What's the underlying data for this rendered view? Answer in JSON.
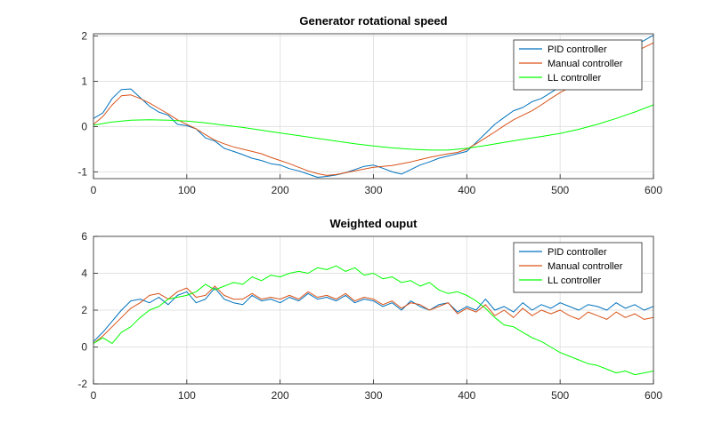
{
  "colors": {
    "pid": "#0072BD",
    "manual": "#D95319",
    "ll": "#00FF00",
    "grid": "#e3e3e3",
    "axis": "#262626"
  },
  "chart_data": [
    {
      "type": "line",
      "title": "Generator rotational speed",
      "xlabel": "",
      "ylabel": "",
      "xlim": [
        0,
        600
      ],
      "ylim": [
        -1.15,
        2.05
      ],
      "xticks": [
        0,
        100,
        200,
        300,
        400,
        500,
        600
      ],
      "yticks": [
        -1,
        0,
        1,
        2
      ],
      "grid": true,
      "legend_position": "top-right",
      "series": [
        {
          "name": "PID controller",
          "color_key": "pid",
          "x": [
            0,
            10,
            20,
            30,
            40,
            50,
            60,
            70,
            80,
            90,
            100,
            110,
            120,
            130,
            140,
            150,
            160,
            170,
            180,
            190,
            200,
            210,
            220,
            230,
            240,
            250,
            260,
            270,
            280,
            290,
            300,
            310,
            320,
            330,
            340,
            350,
            360,
            370,
            380,
            390,
            400,
            410,
            420,
            430,
            440,
            450,
            460,
            470,
            480,
            490,
            500,
            510,
            520,
            530,
            540,
            550,
            560,
            570,
            580,
            590,
            600
          ],
          "values": [
            0.18,
            0.3,
            0.62,
            0.82,
            0.83,
            0.64,
            0.45,
            0.32,
            0.25,
            0.05,
            0.02,
            -0.05,
            -0.25,
            -0.32,
            -0.48,
            -0.55,
            -0.62,
            -0.7,
            -0.75,
            -0.82,
            -0.85,
            -0.93,
            -0.98,
            -1.05,
            -1.12,
            -1.1,
            -1.07,
            -1.02,
            -0.95,
            -0.88,
            -0.85,
            -0.92,
            -1.0,
            -1.05,
            -0.95,
            -0.85,
            -0.78,
            -0.7,
            -0.65,
            -0.6,
            -0.55,
            -0.35,
            -0.15,
            0.05,
            0.2,
            0.35,
            0.42,
            0.55,
            0.62,
            0.75,
            0.88,
            1.0,
            1.15,
            1.22,
            1.35,
            1.48,
            1.58,
            1.7,
            1.8,
            1.9,
            2.02
          ]
        },
        {
          "name": "Manual controller",
          "color_key": "manual",
          "x": [
            0,
            10,
            20,
            30,
            40,
            50,
            60,
            70,
            80,
            90,
            100,
            110,
            120,
            130,
            140,
            150,
            160,
            170,
            180,
            190,
            200,
            210,
            220,
            230,
            240,
            250,
            260,
            270,
            280,
            290,
            300,
            310,
            320,
            330,
            340,
            350,
            360,
            370,
            380,
            390,
            400,
            410,
            420,
            430,
            440,
            450,
            460,
            470,
            480,
            490,
            500,
            510,
            520,
            530,
            540,
            550,
            560,
            570,
            580,
            590,
            600
          ],
          "values": [
            0.05,
            0.22,
            0.48,
            0.68,
            0.7,
            0.62,
            0.52,
            0.4,
            0.28,
            0.15,
            0.05,
            -0.05,
            -0.18,
            -0.3,
            -0.38,
            -0.45,
            -0.5,
            -0.55,
            -0.6,
            -0.68,
            -0.75,
            -0.82,
            -0.9,
            -0.98,
            -1.04,
            -1.08,
            -1.06,
            -1.02,
            -0.98,
            -0.94,
            -0.9,
            -0.88,
            -0.86,
            -0.82,
            -0.78,
            -0.73,
            -0.68,
            -0.64,
            -0.6,
            -0.57,
            -0.5,
            -0.38,
            -0.25,
            -0.12,
            0.02,
            0.15,
            0.25,
            0.35,
            0.48,
            0.62,
            0.75,
            0.86,
            0.95,
            1.08,
            1.2,
            1.32,
            1.45,
            1.55,
            1.65,
            1.75,
            1.85
          ]
        },
        {
          "name": "LL controller",
          "color_key": "ll",
          "x": [
            0,
            20,
            40,
            60,
            80,
            100,
            120,
            140,
            160,
            180,
            200,
            220,
            240,
            260,
            280,
            300,
            320,
            340,
            360,
            380,
            400,
            420,
            440,
            460,
            480,
            500,
            520,
            540,
            560,
            580,
            600
          ],
          "values": [
            0.03,
            0.1,
            0.14,
            0.15,
            0.14,
            0.12,
            0.08,
            0.03,
            -0.02,
            -0.08,
            -0.14,
            -0.2,
            -0.26,
            -0.32,
            -0.38,
            -0.43,
            -0.47,
            -0.5,
            -0.52,
            -0.52,
            -0.48,
            -0.42,
            -0.35,
            -0.28,
            -0.22,
            -0.15,
            -0.06,
            0.05,
            0.18,
            0.32,
            0.48
          ]
        }
      ]
    },
    {
      "type": "line",
      "title": "Weighted ouput",
      "xlabel": "",
      "ylabel": "",
      "xlim": [
        0,
        600
      ],
      "ylim": [
        -2,
        6
      ],
      "xticks": [
        0,
        100,
        200,
        300,
        400,
        500,
        600
      ],
      "yticks": [
        -2,
        0,
        2,
        4,
        6
      ],
      "grid": true,
      "legend_position": "top-right",
      "series": [
        {
          "name": "PID controller",
          "color_key": "pid",
          "x": [
            0,
            10,
            20,
            30,
            40,
            50,
            60,
            70,
            80,
            90,
            100,
            110,
            120,
            130,
            140,
            150,
            160,
            170,
            180,
            190,
            200,
            210,
            220,
            230,
            240,
            250,
            260,
            270,
            280,
            290,
            300,
            310,
            320,
            330,
            340,
            350,
            360,
            370,
            380,
            390,
            400,
            410,
            420,
            430,
            440,
            450,
            460,
            470,
            480,
            490,
            500,
            510,
            520,
            530,
            540,
            550,
            560,
            570,
            580,
            590,
            600
          ],
          "values": [
            0.3,
            0.8,
            1.4,
            2.0,
            2.5,
            2.6,
            2.4,
            2.7,
            2.3,
            2.8,
            3.0,
            2.4,
            2.6,
            3.2,
            2.6,
            2.4,
            2.3,
            2.8,
            2.5,
            2.6,
            2.4,
            2.7,
            2.5,
            2.9,
            2.6,
            2.7,
            2.5,
            2.8,
            2.4,
            2.6,
            2.5,
            2.2,
            2.4,
            2.0,
            2.5,
            2.2,
            2.0,
            2.3,
            2.4,
            1.9,
            2.2,
            2.0,
            2.6,
            2.0,
            2.2,
            1.9,
            2.4,
            2.0,
            2.3,
            2.1,
            2.4,
            2.2,
            2.0,
            2.3,
            2.2,
            2.0,
            2.4,
            2.1,
            2.3,
            2.0,
            2.2
          ]
        },
        {
          "name": "Manual controller",
          "color_key": "manual",
          "x": [
            0,
            10,
            20,
            30,
            40,
            50,
            60,
            70,
            80,
            90,
            100,
            110,
            120,
            130,
            140,
            150,
            160,
            170,
            180,
            190,
            200,
            210,
            220,
            230,
            240,
            250,
            260,
            270,
            280,
            290,
            300,
            310,
            320,
            330,
            340,
            350,
            360,
            370,
            380,
            390,
            400,
            410,
            420,
            430,
            440,
            450,
            460,
            470,
            480,
            490,
            500,
            510,
            520,
            530,
            540,
            550,
            560,
            570,
            580,
            590,
            600
          ],
          "values": [
            0.2,
            0.6,
            1.1,
            1.6,
            2.1,
            2.4,
            2.8,
            2.9,
            2.6,
            3.0,
            3.2,
            2.7,
            2.8,
            3.3,
            2.8,
            2.6,
            2.6,
            2.9,
            2.6,
            2.7,
            2.6,
            2.8,
            2.6,
            3.0,
            2.7,
            2.8,
            2.6,
            2.9,
            2.5,
            2.7,
            2.6,
            2.3,
            2.5,
            2.1,
            2.4,
            2.3,
            2.0,
            2.2,
            2.4,
            1.8,
            2.1,
            1.9,
            2.3,
            1.7,
            2.0,
            1.6,
            2.1,
            1.7,
            2.0,
            1.8,
            2.0,
            1.7,
            1.5,
            1.9,
            1.7,
            1.5,
            1.9,
            1.6,
            1.8,
            1.5,
            1.6
          ]
        },
        {
          "name": "LL controller",
          "color_key": "ll",
          "x": [
            0,
            10,
            20,
            30,
            40,
            50,
            60,
            70,
            80,
            90,
            100,
            110,
            120,
            130,
            140,
            150,
            160,
            170,
            180,
            190,
            200,
            210,
            220,
            230,
            240,
            250,
            260,
            270,
            280,
            290,
            300,
            310,
            320,
            330,
            340,
            350,
            360,
            370,
            380,
            390,
            400,
            410,
            420,
            430,
            440,
            450,
            460,
            470,
            480,
            490,
            500,
            510,
            520,
            530,
            540,
            550,
            560,
            570,
            580,
            590,
            600
          ],
          "values": [
            0.2,
            0.5,
            0.2,
            0.8,
            1.1,
            1.6,
            2.0,
            2.2,
            2.6,
            2.7,
            2.8,
            3.0,
            3.4,
            3.1,
            3.3,
            3.5,
            3.4,
            3.8,
            3.6,
            3.9,
            3.8,
            4.0,
            4.1,
            4.0,
            4.3,
            4.2,
            4.4,
            4.1,
            4.3,
            3.9,
            4.0,
            3.7,
            3.8,
            3.5,
            3.6,
            3.3,
            3.5,
            3.1,
            2.9,
            3.0,
            2.8,
            2.5,
            2.1,
            1.6,
            1.2,
            1.1,
            0.8,
            0.5,
            0.3,
            0.0,
            -0.3,
            -0.5,
            -0.7,
            -0.9,
            -1.0,
            -1.2,
            -1.4,
            -1.3,
            -1.5,
            -1.4,
            -1.3
          ]
        }
      ]
    }
  ]
}
